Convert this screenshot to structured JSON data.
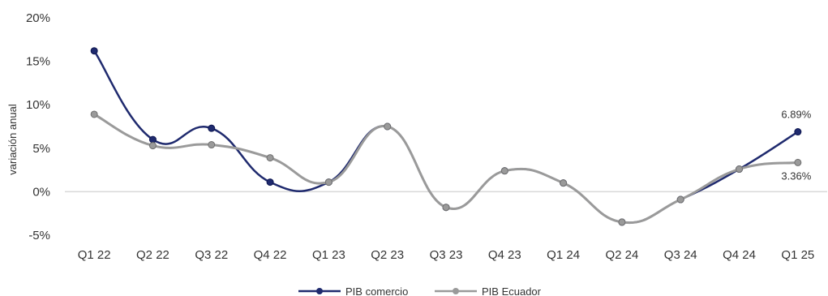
{
  "chart_data": {
    "type": "line",
    "smooth": true,
    "categories": [
      "Q1 22",
      "Q2 22",
      "Q3 22",
      "Q4 22",
      "Q1 23",
      "Q2 23",
      "Q3 23",
      "Q4 23",
      "Q1 24",
      "Q2 24",
      "Q3 24",
      "Q4 24",
      "Q1 25"
    ],
    "ylabel": "variación anual",
    "ylim": [
      -5,
      20
    ],
    "yticks": [
      -5,
      0,
      5,
      10,
      15,
      20
    ],
    "ytick_labels": [
      "-5%",
      "0%",
      "5%",
      "10%",
      "15%",
      "20%"
    ],
    "grid": false,
    "zero_line": true,
    "legend": "bottom-center",
    "series": [
      {
        "name": "PIB comercio",
        "color": "#1f2a6e",
        "values": [
          16.2,
          6.0,
          7.3,
          1.1,
          1.1,
          7.5,
          -1.8,
          2.4,
          1.0,
          -3.5,
          -0.9,
          2.6,
          6.89
        ],
        "last_label": "6.89%"
      },
      {
        "name": "PIB Ecuador",
        "color": "#9a9a9a",
        "values": [
          8.9,
          5.3,
          5.4,
          3.9,
          1.1,
          7.5,
          -1.8,
          2.4,
          1.0,
          -3.5,
          -0.9,
          2.6,
          3.36
        ],
        "last_label": "3.36%"
      }
    ]
  }
}
